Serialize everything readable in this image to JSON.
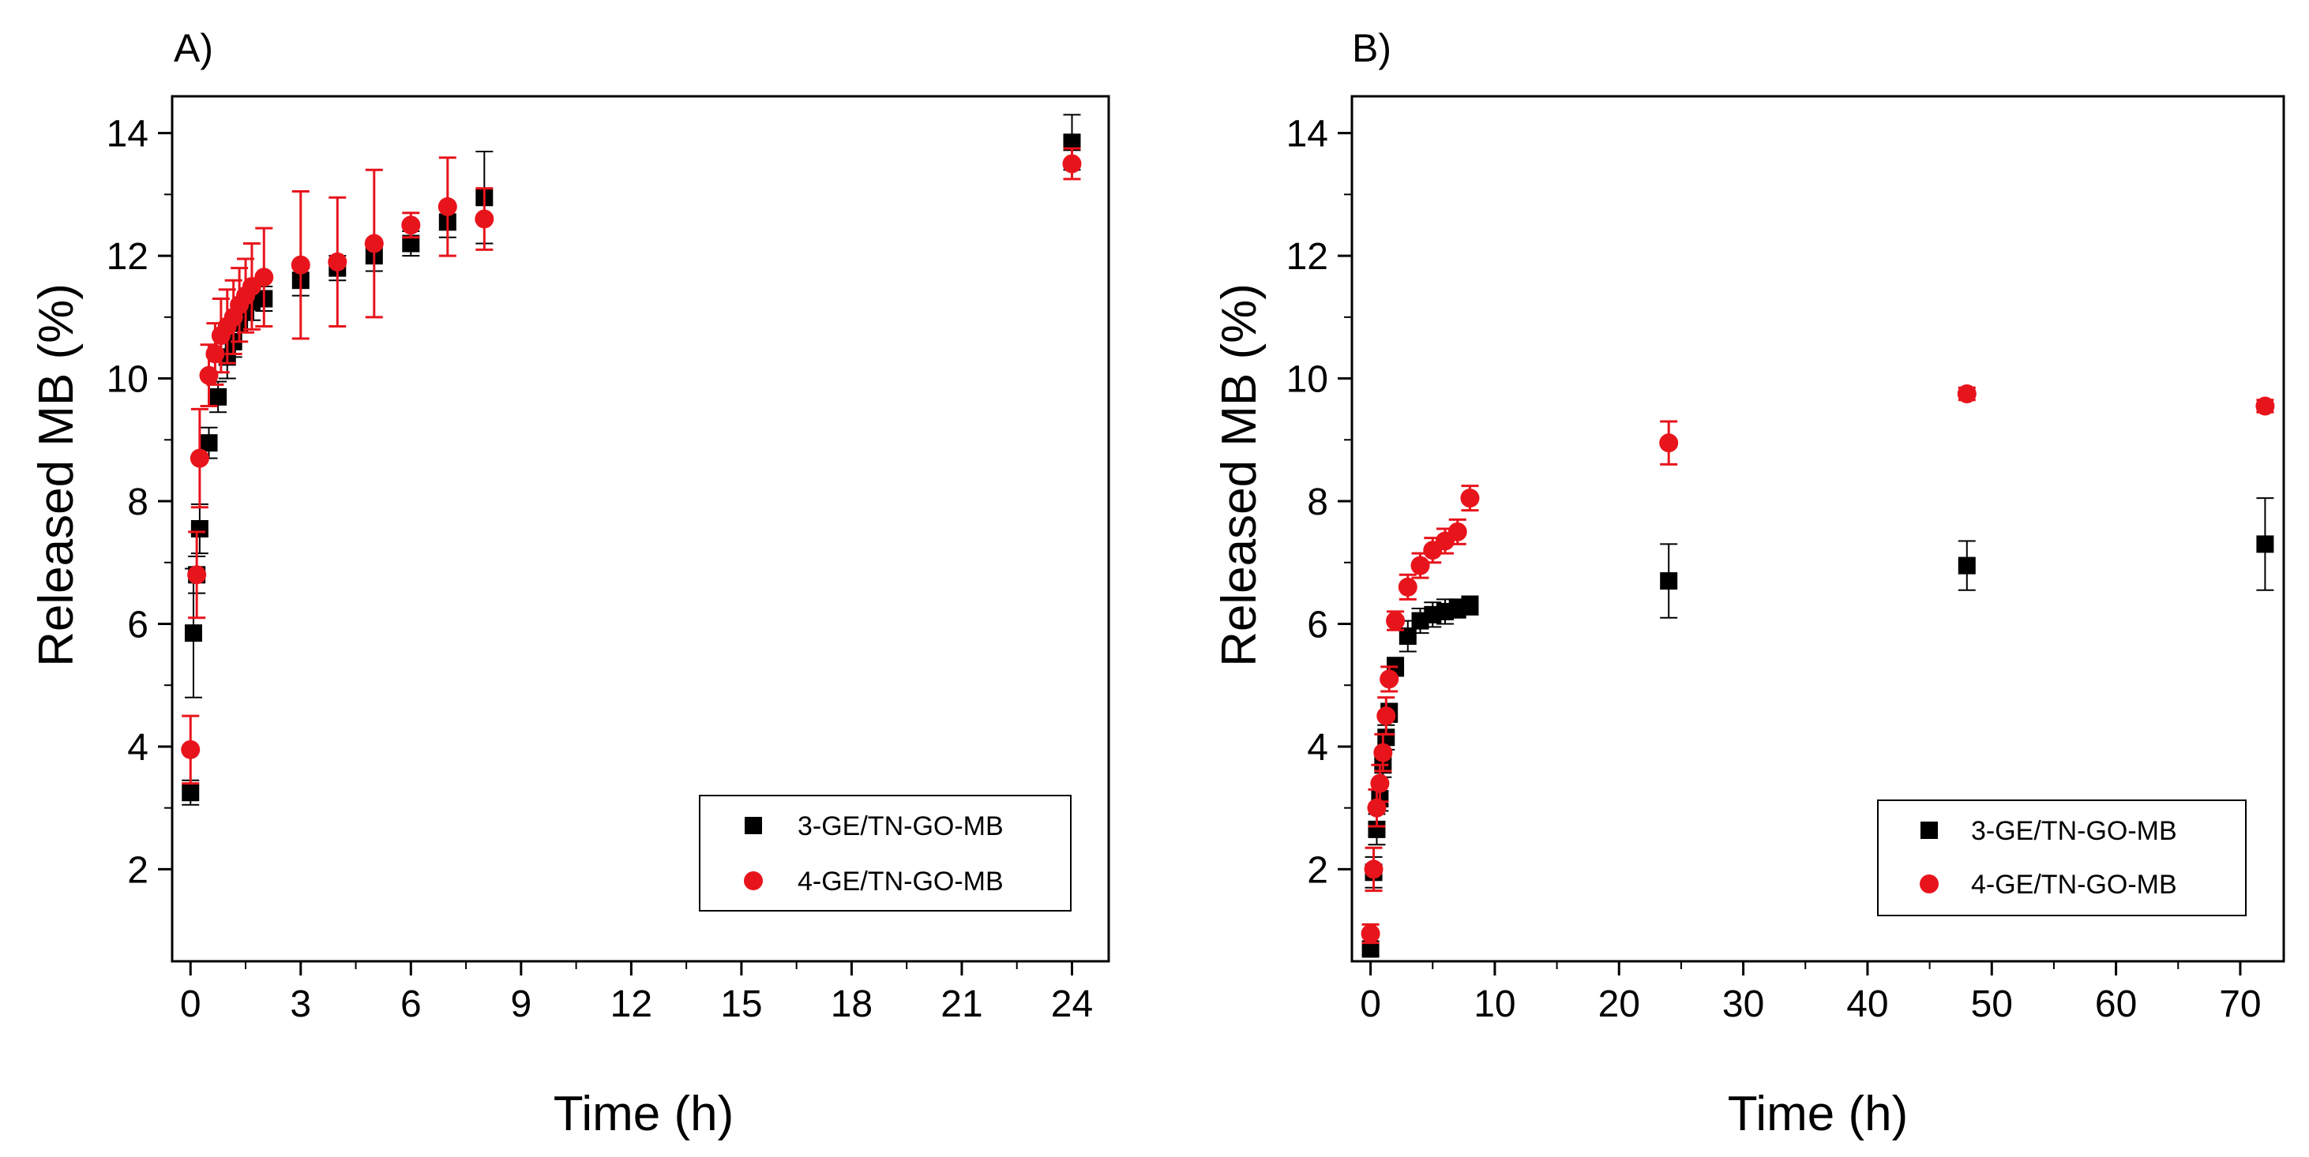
{
  "colors": {
    "series_a": "#000000",
    "series_b": "#e8141c",
    "error_b": "#e8141c",
    "axis": "#000000"
  },
  "chart_data": [
    {
      "type": "scatter",
      "panel_label": "A)",
      "xlabel": "Time (h)",
      "ylabel": "Released MB (%)",
      "xlim": [
        -0.5,
        25
      ],
      "ylim": [
        0.5,
        14.6
      ],
      "xticks": [
        0,
        3,
        6,
        9,
        12,
        15,
        18,
        21,
        24
      ],
      "yticks": [
        2,
        4,
        6,
        8,
        10,
        12,
        14
      ],
      "legend_position": "bottom-right",
      "series": [
        {
          "name": "3-GE/TN-GO-MB",
          "marker": "square",
          "x": [
            0.0,
            0.08,
            0.17,
            0.25,
            0.5,
            0.75,
            1.0,
            1.17,
            1.33,
            1.5,
            1.67,
            2.0,
            3.0,
            4.0,
            5.0,
            6.0,
            7.0,
            8.0,
            24.0
          ],
          "y": [
            3.25,
            5.85,
            6.8,
            7.55,
            8.95,
            9.7,
            10.35,
            10.6,
            10.9,
            11.1,
            11.25,
            11.3,
            11.6,
            11.8,
            12.0,
            12.2,
            12.55,
            12.95,
            13.85
          ],
          "err": [
            0.2,
            1.05,
            0.3,
            0.4,
            0.25,
            0.25,
            0.35,
            0.25,
            0.3,
            0.3,
            0.3,
            0.2,
            0.25,
            0.2,
            0.25,
            0.2,
            0.25,
            0.75,
            0.45
          ]
        },
        {
          "name": "4-GE/TN-GO-MB",
          "marker": "circle",
          "x": [
            0.0,
            0.17,
            0.25,
            0.5,
            0.67,
            0.83,
            1.0,
            1.17,
            1.33,
            1.5,
            1.67,
            2.0,
            3.0,
            4.0,
            5.0,
            6.0,
            7.0,
            8.0,
            24.0
          ],
          "y": [
            3.95,
            6.8,
            8.7,
            10.05,
            10.4,
            10.7,
            10.85,
            11.0,
            11.2,
            11.35,
            11.5,
            11.65,
            11.85,
            11.9,
            12.2,
            12.5,
            12.8,
            12.6,
            13.5
          ],
          "err": [
            0.55,
            0.7,
            0.8,
            0.5,
            0.5,
            0.6,
            0.6,
            0.6,
            0.6,
            0.6,
            0.7,
            0.8,
            1.2,
            1.05,
            1.2,
            0.2,
            0.8,
            0.5,
            0.25
          ]
        }
      ]
    },
    {
      "type": "scatter",
      "panel_label": "B)",
      "xlabel": "Time (h)",
      "ylabel": "Released MB (%)",
      "xlim": [
        -1.5,
        73.5
      ],
      "ylim": [
        0.5,
        14.6
      ],
      "xticks": [
        0,
        10,
        20,
        30,
        40,
        50,
        60,
        70
      ],
      "yticks": [
        2,
        4,
        6,
        8,
        10,
        12,
        14
      ],
      "legend_position": "bottom-right",
      "series": [
        {
          "name": "3-GE/TN-GO-MB",
          "marker": "square",
          "x": [
            0.0,
            0.25,
            0.5,
            0.75,
            1.0,
            1.25,
            1.5,
            2.0,
            3.0,
            4.0,
            5.0,
            6.0,
            7.0,
            8.0,
            24.0,
            48.0,
            72.0
          ],
          "y": [
            0.7,
            1.95,
            2.65,
            3.15,
            3.7,
            4.15,
            4.55,
            5.3,
            5.8,
            6.05,
            6.15,
            6.2,
            6.25,
            6.3,
            6.7,
            6.95,
            7.3
          ],
          "err": [
            0.1,
            0.25,
            0.25,
            0.2,
            0.2,
            0.2,
            0.15,
            0.15,
            0.25,
            0.2,
            0.2,
            0.2,
            0.15,
            0.15,
            0.6,
            0.4,
            0.75
          ]
        },
        {
          "name": "4-GE/TN-GO-MB",
          "marker": "circle",
          "x": [
            0.0,
            0.25,
            0.5,
            0.75,
            1.0,
            1.25,
            1.5,
            2.0,
            3.0,
            4.0,
            5.0,
            6.0,
            7.0,
            8.0,
            24.0,
            48.0,
            72.0
          ],
          "y": [
            0.95,
            2.0,
            3.0,
            3.4,
            3.9,
            4.5,
            5.1,
            6.05,
            6.6,
            6.95,
            7.2,
            7.35,
            7.5,
            8.05,
            8.95,
            9.75,
            9.55
          ],
          "err": [
            0.15,
            0.35,
            0.3,
            0.3,
            0.3,
            0.3,
            0.2,
            0.15,
            0.2,
            0.2,
            0.2,
            0.2,
            0.2,
            0.2,
            0.35,
            0.1,
            0.1
          ]
        }
      ]
    }
  ]
}
